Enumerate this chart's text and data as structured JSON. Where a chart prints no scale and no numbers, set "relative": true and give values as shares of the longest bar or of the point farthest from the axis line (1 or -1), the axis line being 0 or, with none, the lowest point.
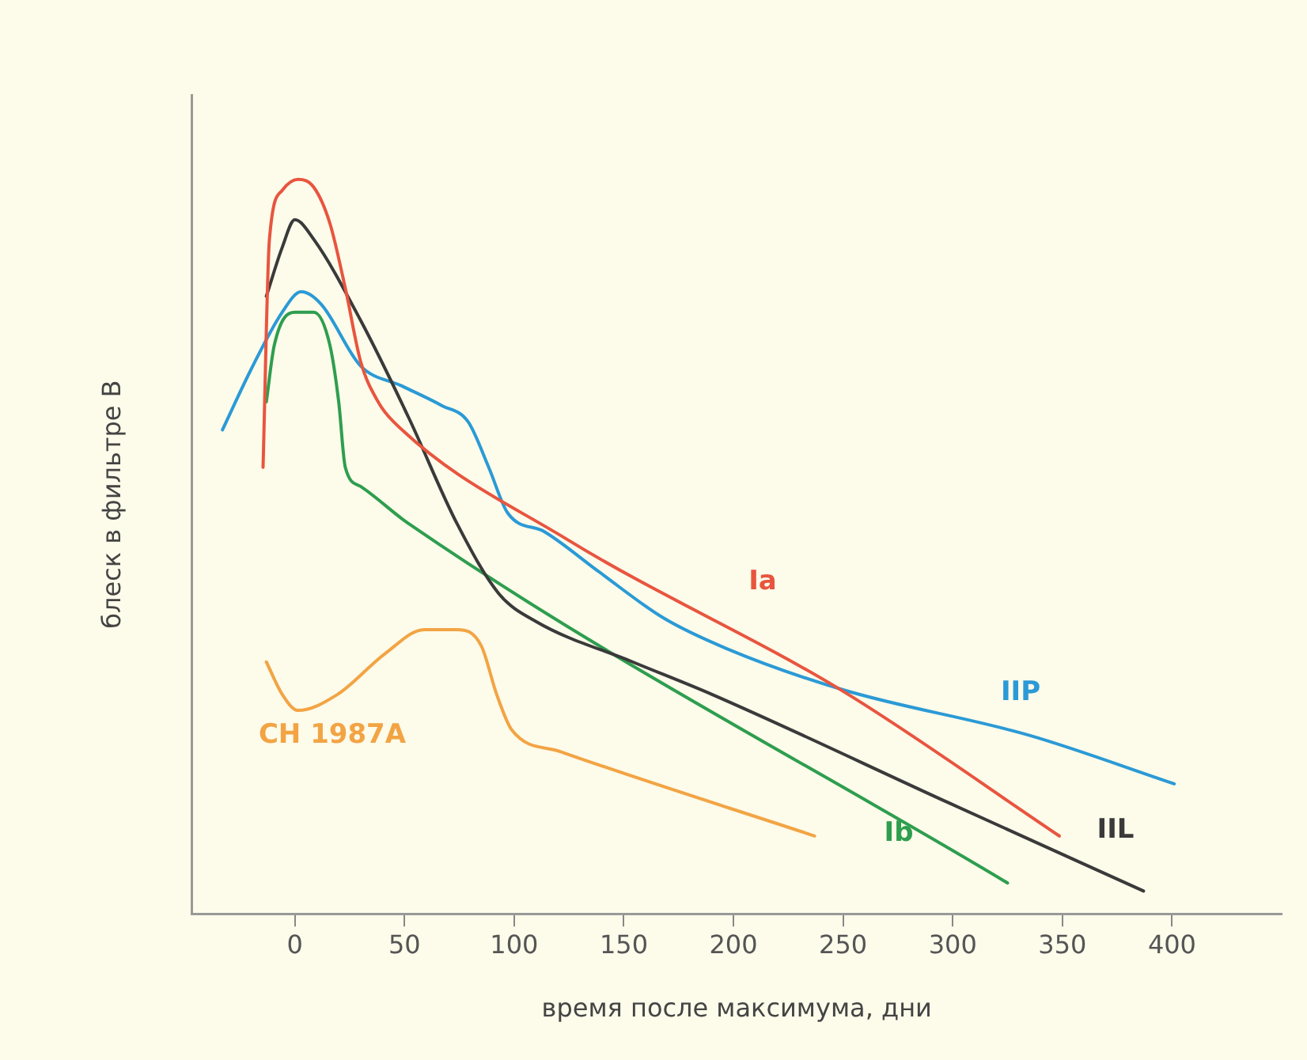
{
  "chart_data": {
    "type": "line",
    "xlabel": "время после максимума, дни",
    "ylabel": "блеск в фильтре B",
    "relative": true,
    "xlim": [
      -47,
      450
    ],
    "xticks": [
      0,
      50,
      100,
      150,
      200,
      250,
      300,
      350,
      400
    ],
    "grid": false,
    "legend": false,
    "marker": "none",
    "line_style": "solid",
    "series": [
      {
        "name": "Ia",
        "color": "#e8553f",
        "x": [
          -14.5,
          -11.6,
          -5.8,
          1.4,
          8.7,
          16,
          23,
          30,
          38,
          45,
          124.6,
          250,
          348.6
        ],
        "values": [
          0.608,
          0.918,
          0.985,
          1,
          0.989,
          0.94,
          0.852,
          0.752,
          0.697,
          0.67,
          0.509,
          0.303,
          0.106
        ]
      },
      {
        "name": "IIL",
        "color": "#3a3a3a",
        "x": [
          -13,
          -5.8,
          0,
          8.7,
          30,
          52,
          74,
          93,
          110,
          154,
          190,
          299,
          387
        ],
        "values": [
          0.841,
          0.907,
          0.945,
          0.918,
          0.808,
          0.675,
          0.531,
          0.436,
          0.398,
          0.343,
          0.299,
          0.15,
          0.031
        ]
      },
      {
        "name": "IIP",
        "color": "#2b9ad6",
        "x": [
          -33,
          -20,
          -5.8,
          2.9,
          12,
          30,
          48.6,
          67,
          79,
          88.4,
          97,
          114,
          139,
          168,
          197,
          250,
          335,
          401
        ],
        "values": [
          0.659,
          0.741,
          0.819,
          0.847,
          0.83,
          0.746,
          0.719,
          0.692,
          0.67,
          0.608,
          0.546,
          0.52,
          0.465,
          0.403,
          0.361,
          0.305,
          0.243,
          0.177
        ]
      },
      {
        "name": "Ib",
        "color": "#2e9e4f",
        "x": [
          -13,
          -9.4,
          0,
          8.7,
          16,
          20,
          23,
          30,
          52,
          325
        ],
        "values": [
          0.697,
          0.774,
          0.819,
          0.819,
          0.774,
          0.697,
          0.608,
          0.582,
          0.531,
          0.042
        ]
      },
      {
        "name": "СН 1987A",
        "color": "#f2a444",
        "x": [
          -13,
          -5.8,
          1.4,
          19.6,
          41,
          59,
          74,
          85,
          92,
          99,
          121,
          237
        ],
        "values": [
          0.343,
          0.299,
          0.277,
          0.299,
          0.354,
          0.387,
          0.387,
          0.365,
          0.299,
          0.25,
          0.221,
          0.106
        ]
      }
    ]
  }
}
